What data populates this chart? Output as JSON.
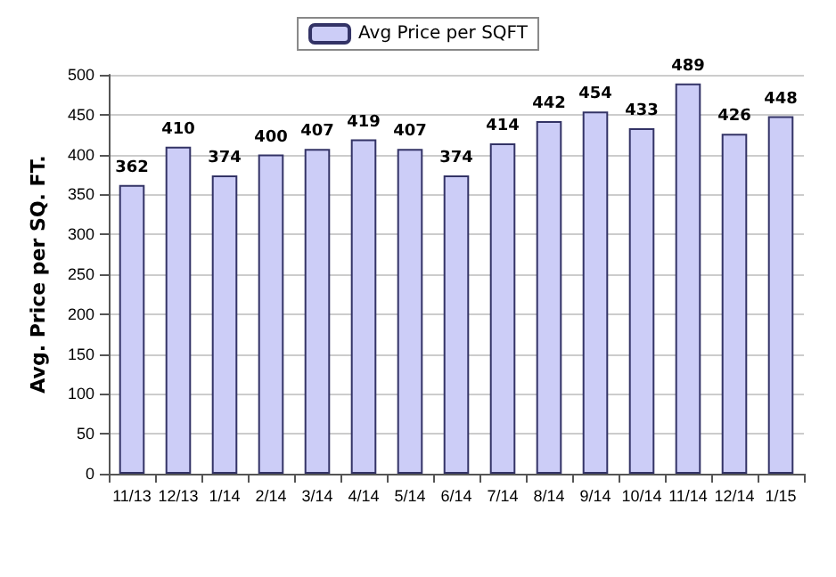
{
  "chart_data": {
    "type": "bar",
    "ylabel": "Avg. Price per SQ. FT.",
    "categories": [
      "11/13",
      "12/13",
      "1/14",
      "2/14",
      "3/14",
      "4/14",
      "5/14",
      "6/14",
      "7/14",
      "8/14",
      "9/14",
      "10/14",
      "11/14",
      "12/14",
      "1/15"
    ],
    "series": [
      {
        "name": "Avg Price per SQFT",
        "color": "#cccdf7",
        "values": [
          362,
          410,
          374,
          400,
          407,
          419,
          407,
          374,
          414,
          442,
          454,
          433,
          489,
          426,
          448
        ]
      }
    ],
    "ylim": [
      0,
      500
    ],
    "yticks": [
      0,
      50,
      100,
      150,
      200,
      250,
      300,
      350,
      400,
      450,
      500
    ],
    "grid": "y",
    "legend": "top",
    "data_labels": true
  }
}
